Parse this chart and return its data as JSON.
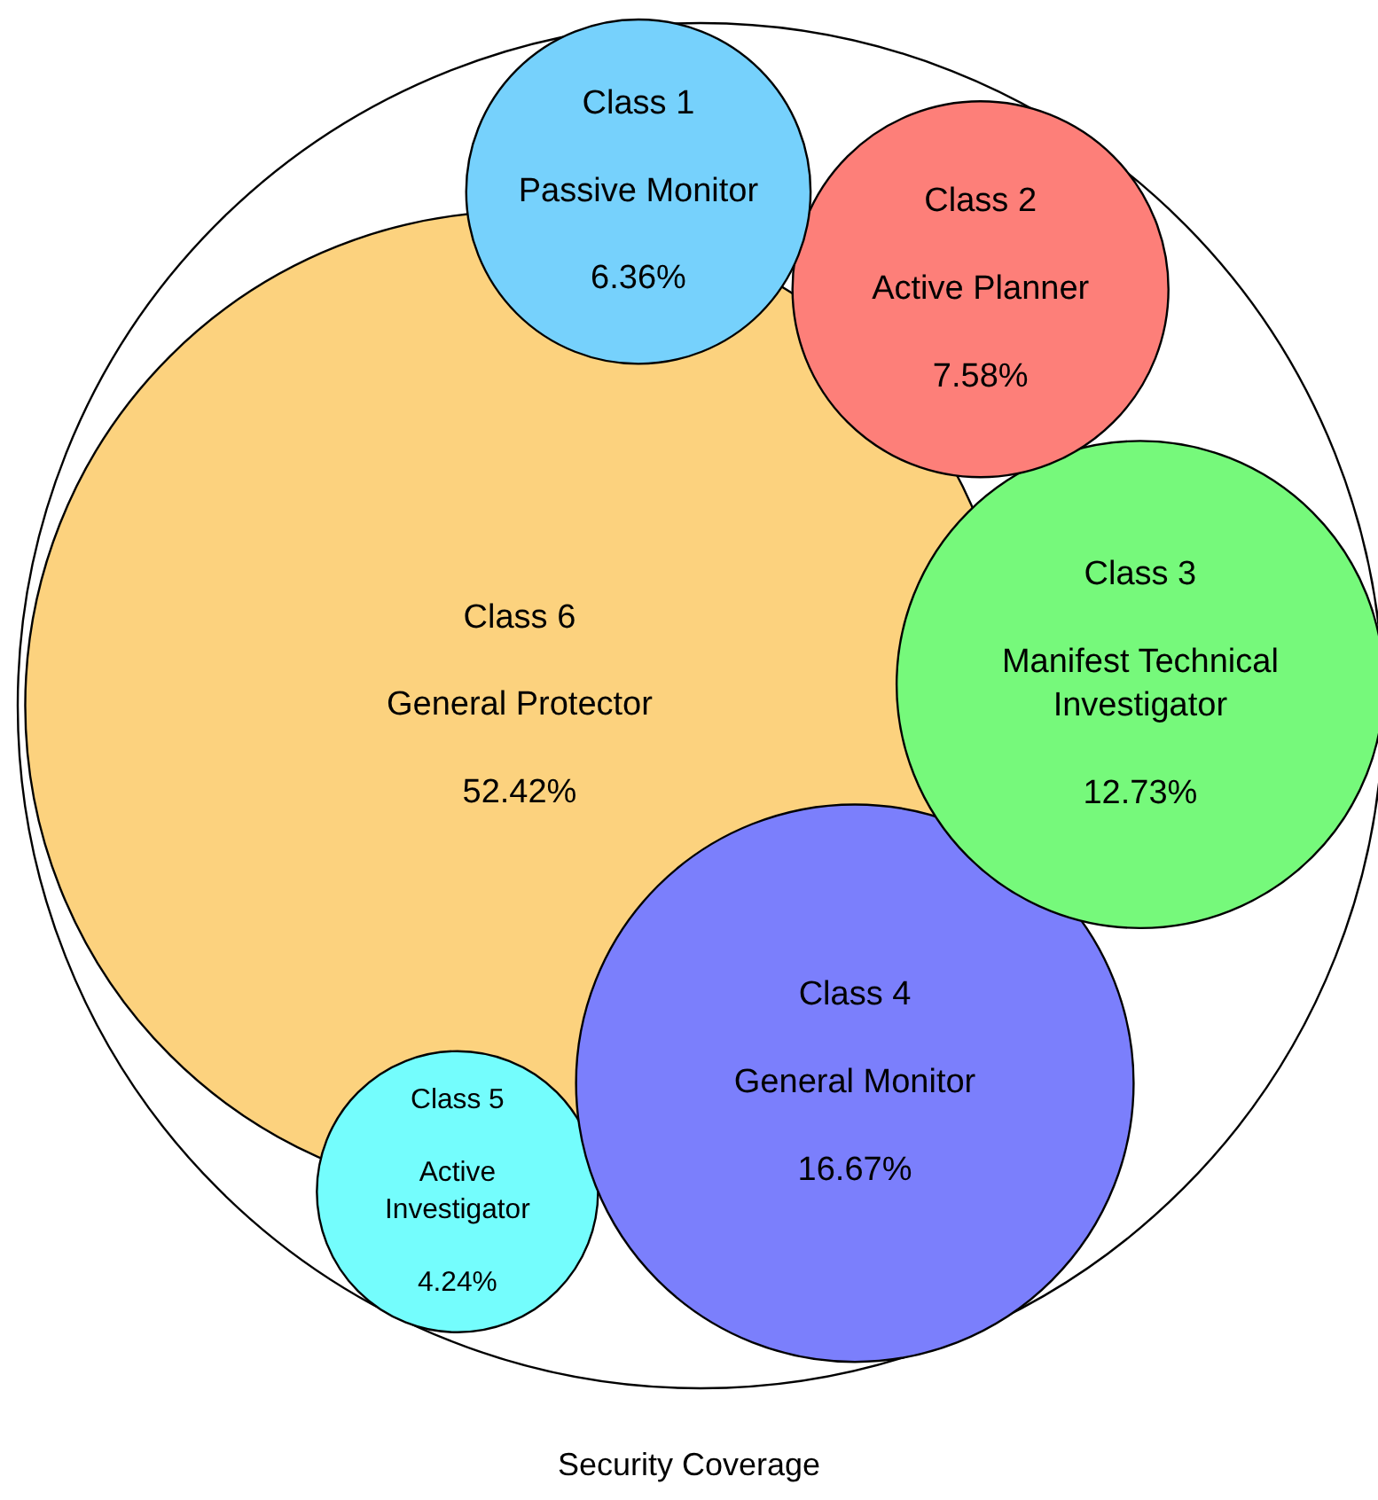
{
  "chart_data": {
    "type": "other",
    "title": "Security Coverage",
    "categories": [
      "Passive Monitor",
      "Active Planner",
      "Manifest Technical Investigator",
      "General Monitor",
      "Active Investigator",
      "General Protector"
    ],
    "values": [
      6.36,
      7.58,
      12.73,
      16.67,
      4.24,
      52.42
    ],
    "value_labels": [
      "6.36%",
      "7.58%",
      "12.73%",
      "16.67%",
      "4.24%",
      "52.42%"
    ],
    "colors": [
      "#76d1fc",
      "#fd7f79",
      "#76f97b",
      "#7b7ffc",
      "#74fdfd",
      "#fcd27e"
    ],
    "annotations": [
      {
        "text": "Class 1",
        "x": "Passive Monitor"
      },
      {
        "text": "Class 2",
        "x": "Active Planner"
      },
      {
        "text": "Class 3",
        "x": "Manifest Technical Investigator"
      },
      {
        "text": "Class 4",
        "x": "General Monitor"
      },
      {
        "text": "Class 5",
        "x": "Active Investigator"
      },
      {
        "text": "Class 6",
        "x": "General Protector"
      }
    ]
  }
}
